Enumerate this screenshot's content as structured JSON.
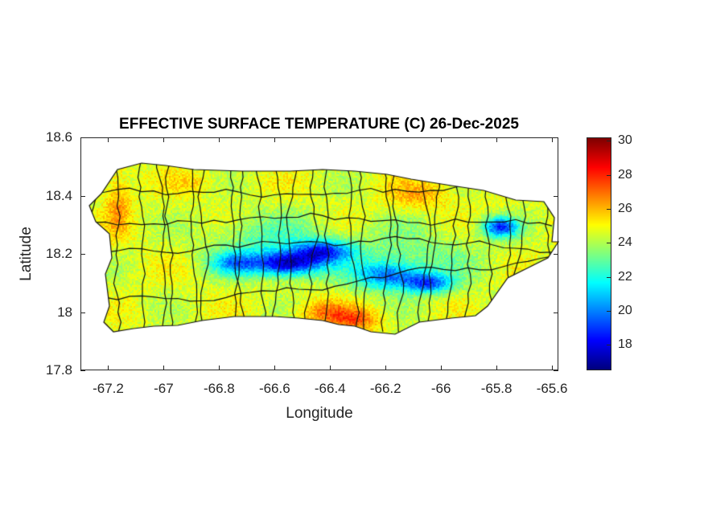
{
  "chart_data": {
    "type": "heatmap",
    "title": "EFFECTIVE SURFACE TEMPERATURE (C) 26-Dec-2025",
    "xlabel": "Longitude",
    "ylabel": "Latitude",
    "xlim": [
      -67.3,
      -65.577
    ],
    "ylim": [
      17.8,
      18.6
    ],
    "xticks": [
      "-67.2",
      "-67",
      "-66.8",
      "-66.6",
      "-66.4",
      "-66.2",
      "-66",
      "-65.8",
      "-65.6"
    ],
    "yticks": [
      "17.8",
      "18",
      "18.2",
      "18.4",
      "18.6"
    ],
    "colorbar": {
      "colormap": "jet",
      "clim": [
        16.5,
        30.2
      ],
      "ticks": [
        "18",
        "20",
        "22",
        "24",
        "26",
        "28",
        "30"
      ]
    },
    "grid": false,
    "region": "Puerto Rico municipalities",
    "field_summary": {
      "coastal_range": [
        24,
        27
      ],
      "central_mountains_min": 17.5
    }
  }
}
